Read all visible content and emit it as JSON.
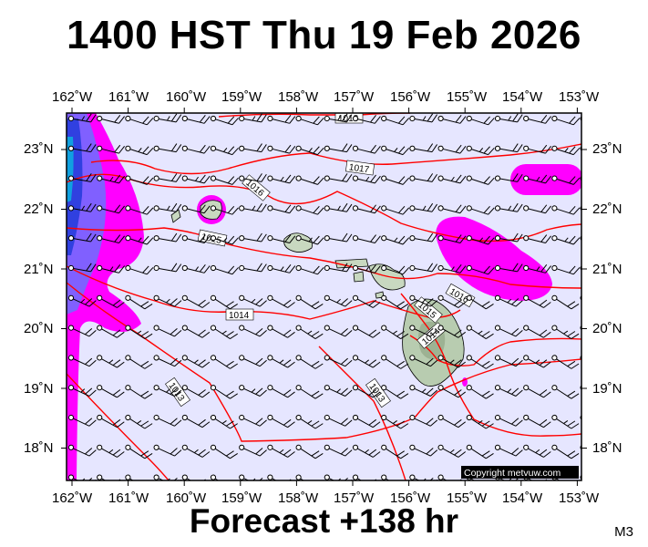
{
  "title": "1400 HST Thu 19 Feb 2026",
  "footer": "Forecast +138 hr",
  "model_code": "M3",
  "copyright": "Copyright metvuw.com",
  "lon_labels": [
    "162˚W",
    "161˚W",
    "160˚W",
    "159˚W",
    "158˚W",
    "157˚W",
    "156˚W",
    "155˚W",
    "154˚W",
    "153˚W"
  ],
  "lat_labels": [
    "23˚N",
    "22˚N",
    "21˚N",
    "20˚N",
    "19˚N",
    "18˚N"
  ],
  "isobar_labels": [
    "1018",
    "1017",
    "1016",
    "1015",
    "1014",
    "1013",
    "1013",
    "1015",
    "1014",
    "1016"
  ],
  "colors": {
    "background": "#e6e6ff",
    "precip_light": "#ff00ff",
    "precip_heavy": "#5050ff",
    "isobar": "#ff0000",
    "land": "#c8d8c0"
  }
}
